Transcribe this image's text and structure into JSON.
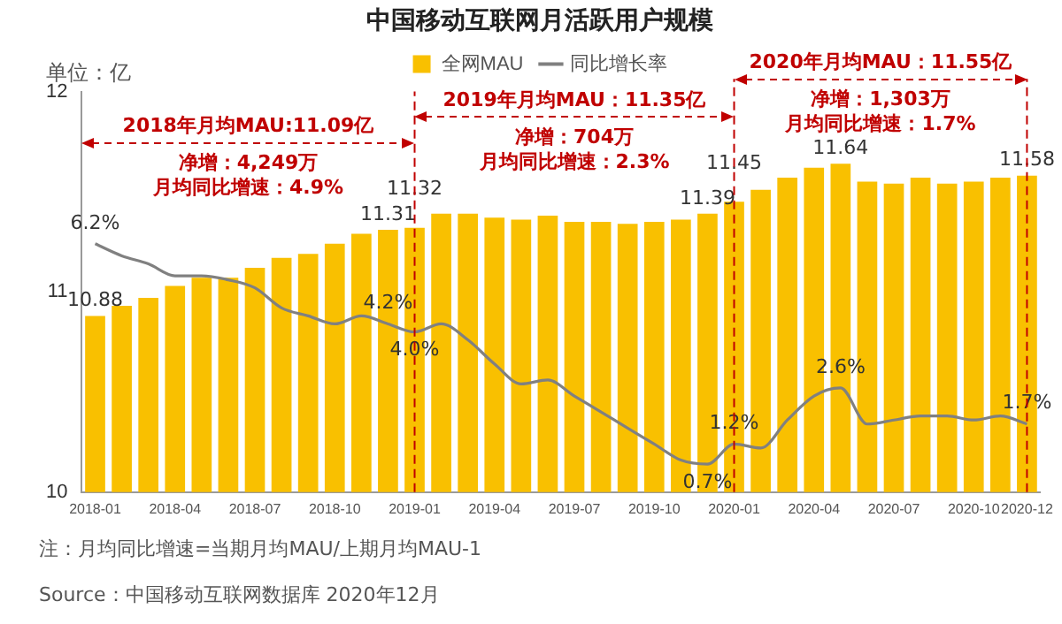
{
  "chart_data": {
    "type": "bar",
    "title": "中国移动互联网月活跃用户规模",
    "ylabel": "单位：亿",
    "categories": [
      "2018-01",
      null,
      null,
      "2018-04",
      null,
      null,
      "2018-07",
      null,
      null,
      "2018-10",
      null,
      null,
      "2019-01",
      null,
      null,
      "2019-04",
      null,
      null,
      "2019-07",
      null,
      null,
      "2019-10",
      null,
      null,
      "2020-01",
      null,
      null,
      "2020-04",
      null,
      null,
      "2020-07",
      null,
      null,
      "2020-10",
      null,
      "2020-12"
    ],
    "series": [
      {
        "name": "全网MAU",
        "color": "#f9c000",
        "values": [
          10.88,
          10.93,
          10.97,
          11.03,
          11.07,
          11.07,
          11.12,
          11.17,
          11.19,
          11.24,
          11.29,
          11.31,
          11.32,
          11.39,
          11.39,
          11.37,
          11.36,
          11.38,
          11.35,
          11.35,
          11.34,
          11.35,
          11.36,
          11.39,
          11.45,
          11.51,
          11.57,
          11.62,
          11.64,
          11.55,
          11.54,
          11.57,
          11.54,
          11.55,
          11.57,
          11.58
        ],
        "value_labels": [
          "10.88",
          null,
          null,
          null,
          null,
          null,
          null,
          null,
          null,
          null,
          null,
          "11.31",
          "11.32",
          null,
          null,
          null,
          null,
          null,
          null,
          null,
          null,
          null,
          null,
          "11.39",
          "11.45",
          null,
          null,
          null,
          "11.64",
          null,
          null,
          null,
          null,
          null,
          null,
          "11.58"
        ]
      },
      {
        "name": "同比增长率",
        "type": "line",
        "axis": "y2",
        "color": "#808080",
        "values": [
          6.2,
          5.9,
          5.7,
          5.4,
          5.4,
          5.3,
          5.1,
          4.6,
          4.4,
          4.2,
          4.4,
          4.2,
          4.0,
          4.2,
          3.8,
          3.2,
          2.7,
          2.8,
          2.4,
          2.0,
          1.6,
          1.2,
          0.8,
          0.7,
          1.2,
          1.1,
          1.8,
          2.4,
          2.6,
          1.7,
          1.8,
          1.9,
          1.9,
          1.8,
          1.9,
          1.7
        ],
        "value_labels": [
          "6.2%",
          null,
          null,
          null,
          null,
          null,
          null,
          null,
          null,
          null,
          null,
          "4.2%",
          "4.0%",
          null,
          null,
          null,
          null,
          null,
          null,
          null,
          null,
          null,
          null,
          "0.7%",
          "1.2%",
          null,
          null,
          null,
          "2.6%",
          null,
          null,
          null,
          null,
          null,
          null,
          "1.7%"
        ]
      }
    ],
    "ylim": [
      10,
      12
    ],
    "yticks": [
      10,
      11,
      12
    ],
    "y2lim": [
      0,
      10
    ],
    "ref_lines": [
      {
        "axis": "x",
        "value": "2019-01",
        "color": "#c00000",
        "line_style": "dashed"
      },
      {
        "axis": "x",
        "value": "2020-01",
        "color": "#c00000",
        "line_style": "dashed"
      },
      {
        "axis": "x",
        "value": "2020-12",
        "color": "#c00000",
        "line_style": "dashed"
      }
    ],
    "annotations": [
      "2018年月均MAU:11.09亿",
      "净增：4,249万",
      "月均同比增速：4.9%",
      "2019年月均MAU：11.35亿",
      "净增：704万",
      "月均同比增速：2.3%",
      "2020年月均MAU：11.55亿",
      "净增：1,303万",
      "月均同比增速：1.7%",
      "注：月均同比增速=当期月均MAU/上期月均MAU-1",
      "Source：中国移动互联网数据库 2020年12月"
    ],
    "legend": "top"
  }
}
